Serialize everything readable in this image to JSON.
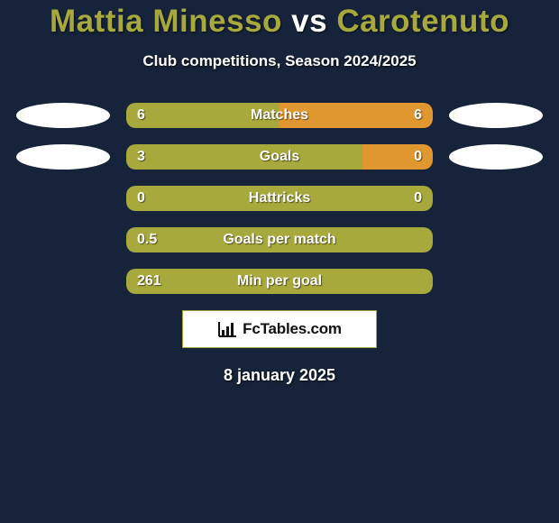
{
  "title": {
    "player1": "Mattia Minesso",
    "vs": "vs",
    "player2": "Carotenuto",
    "color_p1": "#a7a93c",
    "color_vs": "#ffffff",
    "color_p2": "#a7a93c",
    "fontsize": 35
  },
  "subtitle": {
    "text": "Club competitions, Season 2024/2025",
    "fontsize": 17
  },
  "colors": {
    "background": "#17233a",
    "bar_p1": "#a7a93c",
    "bar_p2": "#e0972f",
    "ellipse": "#ffffff",
    "text": "#ffffff",
    "text_shadow": "rgba(0,0,0,0.55)"
  },
  "bar_style": {
    "height": 28,
    "border_radius": 10,
    "row_gap": 18,
    "label_fontsize": 16,
    "value_fontsize": 16
  },
  "ellipse_style": {
    "width": 104,
    "height": 28
  },
  "rows": [
    {
      "label": "Matches",
      "left": "6",
      "right": "6",
      "left_pct": 50,
      "right_pct": 50,
      "show_left_ellipse": true,
      "show_right_ellipse": true
    },
    {
      "label": "Goals",
      "left": "3",
      "right": "0",
      "left_pct": 77,
      "right_pct": 23,
      "show_left_ellipse": true,
      "show_right_ellipse": true
    },
    {
      "label": "Hattricks",
      "left": "0",
      "right": "0",
      "left_pct": 100,
      "right_pct": 0,
      "show_left_ellipse": false,
      "show_right_ellipse": false
    },
    {
      "label": "Goals per match",
      "left": "0.5",
      "right": "",
      "left_pct": 100,
      "right_pct": 0,
      "show_left_ellipse": false,
      "show_right_ellipse": false
    },
    {
      "label": "Min per goal",
      "left": "261",
      "right": "",
      "left_pct": 100,
      "right_pct": 0,
      "show_left_ellipse": false,
      "show_right_ellipse": false
    }
  ],
  "logo": {
    "text": "FcTables.com",
    "box_bg": "#ffffff",
    "box_border": "#a7a93c",
    "icon_color": "#111111",
    "text_color": "#111111"
  },
  "date": {
    "text": "8 january 2025",
    "fontsize": 18
  }
}
